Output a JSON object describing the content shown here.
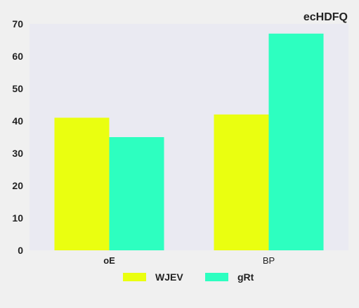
{
  "chart_data": {
    "type": "bar",
    "title": "ecHDFQ",
    "categories": [
      "oE",
      "BP"
    ],
    "category_bold": [
      true,
      false
    ],
    "series": [
      {
        "name": "WJEV",
        "values": [
          41,
          42
        ],
        "color": "#eaff10"
      },
      {
        "name": "gRt",
        "values": [
          35,
          67
        ],
        "color": "#2dffc0"
      }
    ],
    "ylim": [
      0,
      70
    ],
    "yticks": [
      0,
      10,
      20,
      30,
      40,
      50,
      60,
      70
    ],
    "grid": false,
    "legend_position": "bottom-center",
    "plot_background": "#eaeaf2",
    "page_background": "#f0f0f0"
  }
}
